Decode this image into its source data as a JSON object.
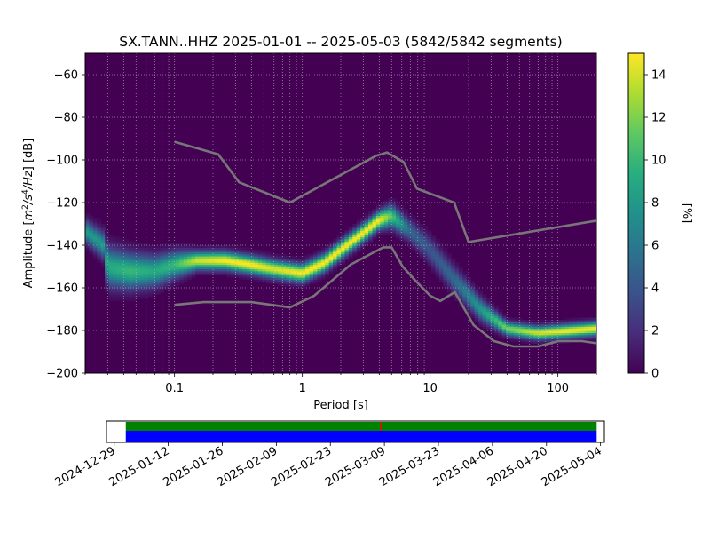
{
  "chart_data": [
    {
      "type": "heatmap",
      "title": "SX.TANN..HHZ   2025-01-01 -- 2025-05-03  (5842/5842 segments)",
      "xlabel": "Period [s]",
      "ylabel_parts": [
        "Amplitude [",
        "m",
        "2",
        "/s",
        "4",
        "/Hz",
        "] [dB]"
      ],
      "x_scale": "log",
      "xlim": [
        0.02,
        200
      ],
      "ylim": [
        -200,
        -50
      ],
      "x_ticks": [
        {
          "value": 0.1,
          "label": "0.1"
        },
        {
          "value": 1,
          "label": "1"
        },
        {
          "value": 10,
          "label": "10"
        },
        {
          "value": 100,
          "label": "100"
        }
      ],
      "y_ticks": [
        {
          "value": -60,
          "label": "−60"
        },
        {
          "value": -80,
          "label": "−80"
        },
        {
          "value": -100,
          "label": "−100"
        },
        {
          "value": -120,
          "label": "−120"
        },
        {
          "value": -140,
          "label": "−140"
        },
        {
          "value": -160,
          "label": "−160"
        },
        {
          "value": -180,
          "label": "−180"
        },
        {
          "value": -200,
          "label": "−200"
        }
      ],
      "grid": true,
      "colormap": "viridis",
      "background_color": "#440154",
      "colorbar": {
        "label": "[%]",
        "range": [
          0,
          15
        ],
        "ticks": [
          {
            "value": 0,
            "label": "0"
          },
          {
            "value": 2,
            "label": "2"
          },
          {
            "value": 4,
            "label": "4"
          },
          {
            "value": 6,
            "label": "6"
          },
          {
            "value": 8,
            "label": "8"
          },
          {
            "value": 10,
            "label": "10"
          },
          {
            "value": 12,
            "label": "12"
          },
          {
            "value": 14,
            "label": "14"
          }
        ]
      },
      "density_ridge": [
        {
          "period": 0.02,
          "db": -133,
          "width": 5,
          "peak": 8
        },
        {
          "period": 0.028,
          "db": -140,
          "width": 6,
          "peak": 8
        },
        {
          "period": 0.03,
          "db": -150,
          "width": 9,
          "peak": 9
        },
        {
          "period": 0.045,
          "db": -152,
          "width": 8,
          "peak": 10
        },
        {
          "period": 0.07,
          "db": -152,
          "width": 7,
          "peak": 9
        },
        {
          "period": 0.1,
          "db": -149,
          "width": 6,
          "peak": 10
        },
        {
          "period": 0.15,
          "db": -147,
          "width": 4,
          "peak": 14
        },
        {
          "period": 0.25,
          "db": -147,
          "width": 4,
          "peak": 15
        },
        {
          "period": 0.4,
          "db": -149,
          "width": 4,
          "peak": 15
        },
        {
          "period": 0.6,
          "db": -151,
          "width": 4,
          "peak": 14
        },
        {
          "period": 1,
          "db": -153,
          "width": 4,
          "peak": 15
        },
        {
          "period": 1.5,
          "db": -148,
          "width": 4,
          "peak": 15
        },
        {
          "period": 2,
          "db": -142,
          "width": 4,
          "peak": 15
        },
        {
          "period": 3,
          "db": -134,
          "width": 4,
          "peak": 15
        },
        {
          "period": 4,
          "db": -128,
          "width": 4,
          "peak": 15
        },
        {
          "period": 5,
          "db": -126,
          "width": 5,
          "peak": 11
        },
        {
          "period": 7,
          "db": -133,
          "width": 5,
          "peak": 5
        },
        {
          "period": 10,
          "db": -142,
          "width": 6,
          "peak": 4
        },
        {
          "period": 15,
          "db": -155,
          "width": 6,
          "peak": 5
        },
        {
          "period": 25,
          "db": -170,
          "width": 5,
          "peak": 8
        },
        {
          "period": 40,
          "db": -179,
          "width": 3,
          "peak": 12
        },
        {
          "period": 70,
          "db": -181,
          "width": 3,
          "peak": 14
        },
        {
          "period": 120,
          "db": -180,
          "width": 3,
          "peak": 15
        },
        {
          "period": 200,
          "db": -179,
          "width": 3,
          "peak": 15
        }
      ],
      "series": [
        {
          "color": "#777777",
          "points": [
            [
              0.1,
              -91.5
            ],
            [
              0.22,
              -97.4
            ],
            [
              0.32,
              -110.5
            ],
            [
              0.8,
              -120
            ],
            [
              3.8,
              -98
            ],
            [
              4.6,
              -96.5
            ],
            [
              6.2,
              -101
            ],
            [
              7.9,
              -113.5
            ],
            [
              15.4,
              -120
            ],
            [
              20,
              -138.5
            ],
            [
              200,
              -128.5
            ]
          ]
        },
        {
          "color": "#777777",
          "points": [
            [
              0.1,
              -168
            ],
            [
              0.17,
              -166.7
            ],
            [
              0.4,
              -166.7
            ],
            [
              0.8,
              -169.2
            ],
            [
              1.24,
              -163.7
            ],
            [
              2.4,
              -149
            ],
            [
              4.3,
              -141
            ],
            [
              5,
              -141
            ],
            [
              6.1,
              -150
            ],
            [
              7.7,
              -156.7
            ],
            [
              10,
              -163.7
            ],
            [
              12,
              -166.2
            ],
            [
              15.6,
              -162
            ],
            [
              21.9,
              -177.5
            ],
            [
              31.6,
              -185
            ],
            [
              45,
              -187.5
            ],
            [
              70,
              -187.5
            ],
            [
              101,
              -185
            ],
            [
              154,
              -185
            ],
            [
              200,
              -186
            ]
          ]
        }
      ]
    },
    {
      "type": "timeline",
      "x_ticks": [
        "2024-12-29",
        "2025-01-12",
        "2025-01-26",
        "2025-02-09",
        "2025-02-23",
        "2025-03-09",
        "2025-03-23",
        "2025-04-06",
        "2025-04-20",
        "2025-05-04"
      ],
      "xlim": [
        "2024-12-27",
        "2025-05-05"
      ],
      "bars": [
        {
          "color": "#008000",
          "start": "2025-01-01",
          "end": "2025-05-03",
          "row": "top"
        },
        {
          "color": "#0000ff",
          "start": "2025-01-01",
          "end": "2025-05-03",
          "row": "bottom"
        }
      ],
      "markers": [
        {
          "color": "#ff0000",
          "date": "2025-03-08"
        }
      ]
    }
  ]
}
